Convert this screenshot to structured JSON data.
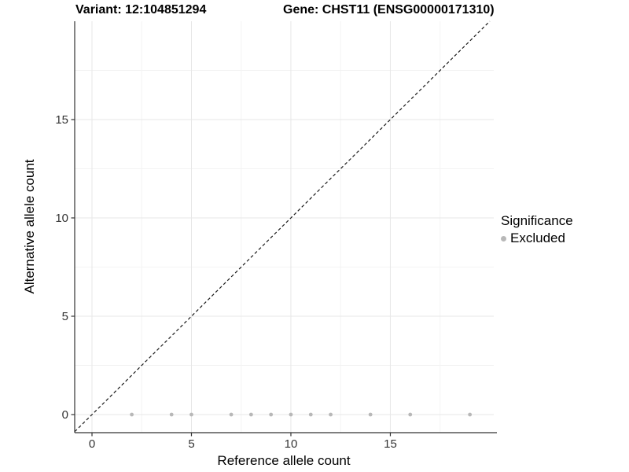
{
  "chart_data": {
    "type": "scatter",
    "titles": {
      "left": "Variant: 12:104851294",
      "right": "Gene: CHST11 (ENSG00000171310)"
    },
    "xlabel": "Reference allele count",
    "ylabel": "Alternative allele count",
    "x_ticks": [
      0,
      5,
      10,
      15
    ],
    "y_ticks": [
      0,
      5,
      10,
      15
    ],
    "x_minor_ticks": [
      2.5,
      7.5,
      12.5,
      17.5
    ],
    "y_minor_ticks": [
      2.5,
      7.5,
      12.5,
      17.5
    ],
    "xlim": [
      -0.87,
      20.2
    ],
    "ylim": [
      -0.92,
      20.0
    ],
    "grid": true,
    "identity_line": {
      "style": "dashed",
      "from": -0.87,
      "to": 20.0,
      "color": "#1a1a1a"
    },
    "series": [
      {
        "name": "Excluded",
        "color": "#b8b8b8",
        "points": [
          {
            "x": 2,
            "y": 0
          },
          {
            "x": 4,
            "y": 0
          },
          {
            "x": 5,
            "y": 0
          },
          {
            "x": 7,
            "y": 0
          },
          {
            "x": 8,
            "y": 0
          },
          {
            "x": 9,
            "y": 0
          },
          {
            "x": 10,
            "y": 0
          },
          {
            "x": 11,
            "y": 0
          },
          {
            "x": 12,
            "y": 0
          },
          {
            "x": 14,
            "y": 0
          },
          {
            "x": 16,
            "y": 0
          },
          {
            "x": 19,
            "y": 0
          }
        ]
      }
    ],
    "legend": {
      "title": "Significance",
      "position": "right",
      "items": [
        {
          "label": "Excluded",
          "color": "#b8b8b8"
        }
      ]
    },
    "colors": {
      "grid_major": "#e7e7e7",
      "grid_minor": "#f3f3f3",
      "axis": "#333333",
      "tick_label": "#333333",
      "point": "#b8b8b8"
    }
  }
}
